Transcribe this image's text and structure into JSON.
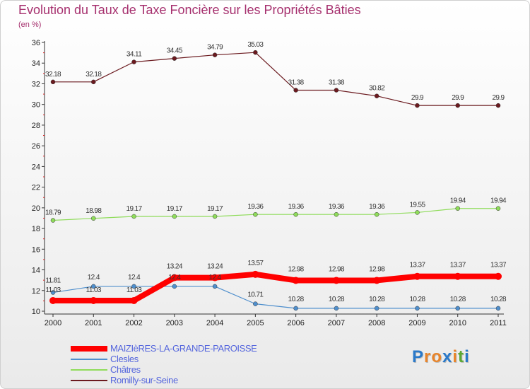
{
  "header": {
    "title": "Evolution du Taux de Taxe Foncière sur les Propriétés Bâties",
    "unit": "(en %)"
  },
  "logo": {
    "text": "Proxiti",
    "letters": [
      "P",
      "r",
      "o",
      "x",
      "i",
      "t",
      "i"
    ],
    "colors": [
      "#2a79c9",
      "#e8842a",
      "#e8842a",
      "#2a79c9",
      "#e8842a",
      "#5aa832",
      "#2a79c9"
    ]
  },
  "chart_data": {
    "type": "line",
    "title": "Evolution du Taux de Taxe Foncière sur les Propriétés Bâties",
    "ylabel": "(en %)",
    "xlabel": "",
    "ylim": [
      10,
      36
    ],
    "yticks": [
      10,
      12,
      14,
      16,
      18,
      20,
      22,
      24,
      26,
      28,
      30,
      32,
      34,
      36
    ],
    "grid": false,
    "legend_position": "bottom-left",
    "x": [
      "2000",
      "2001",
      "2002",
      "2003",
      "2004",
      "2005",
      "2006",
      "2007",
      "2008",
      "2009",
      "2010",
      "2011"
    ],
    "series": [
      {
        "name": "MAIZIèRES-LA-GRANDE-PAROISSE",
        "color": "#ff0000",
        "values": [
          11.03,
          11.03,
          11.03,
          13.24,
          13.24,
          13.57,
          12.98,
          12.98,
          12.98,
          13.37,
          13.37,
          13.37
        ],
        "labels": [
          "11.03",
          "11.03",
          "11.03",
          "13.24",
          "13.24",
          "13.57",
          "12.98",
          "12.98",
          "12.98",
          "13.37",
          "13.37",
          "13.37"
        ]
      },
      {
        "name": "Clesles",
        "color": "#4f8fcd",
        "values": [
          11.81,
          12.4,
          12.4,
          12.4,
          12.4,
          10.71,
          10.28,
          10.28,
          10.28,
          10.28,
          10.28,
          10.28
        ],
        "labels": [
          "11.81",
          "12.4",
          "12.4",
          "12.4",
          "12.4",
          "10.71",
          "10.28",
          "10.28",
          "10.28",
          "10.28",
          "10.28",
          "10.28"
        ]
      },
      {
        "name": "Châtres",
        "color": "#8fdc5a",
        "values": [
          18.79,
          18.98,
          19.17,
          19.17,
          19.17,
          19.36,
          19.36,
          19.36,
          19.36,
          19.55,
          19.94,
          19.94
        ],
        "labels": [
          "18.79",
          "18.98",
          "19.17",
          "19.17",
          "19.17",
          "19.36",
          "19.36",
          "19.36",
          "19.36",
          "19.55",
          "19.94",
          "19.94"
        ]
      },
      {
        "name": "Romilly-sur-Seine",
        "color": "#6b1a1f",
        "values": [
          32.18,
          32.18,
          34.11,
          34.45,
          34.79,
          35.03,
          31.38,
          31.38,
          30.82,
          29.9,
          29.9,
          29.9
        ],
        "labels": [
          "32.18",
          "32.18",
          "34.11",
          "34.45",
          "34.79",
          "35.03",
          "31.38",
          "31.38",
          "30.82",
          "29.9",
          "29.9",
          "29.9"
        ]
      }
    ]
  }
}
